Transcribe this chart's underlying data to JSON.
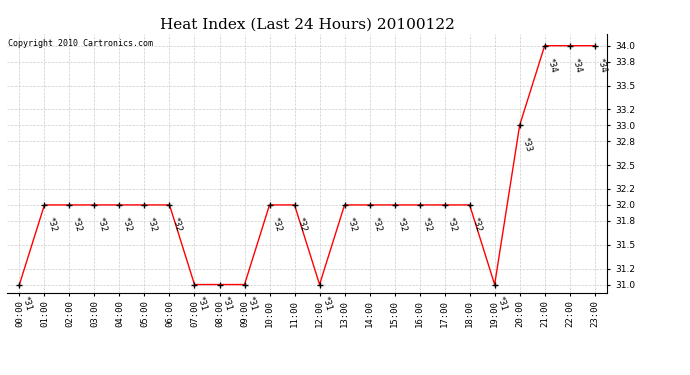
{
  "title": "Heat Index (Last 24 Hours) 20100122",
  "copyright": "Copyright 2010 Cartronics.com",
  "x_labels": [
    "00:00",
    "01:00",
    "02:00",
    "03:00",
    "04:00",
    "05:00",
    "06:00",
    "07:00",
    "08:00",
    "09:00",
    "10:00",
    "11:00",
    "12:00",
    "13:00",
    "14:00",
    "15:00",
    "16:00",
    "17:00",
    "18:00",
    "19:00",
    "20:00",
    "21:00",
    "22:00",
    "23:00"
  ],
  "y_values": [
    31,
    32,
    32,
    32,
    32,
    32,
    32,
    31,
    31,
    31,
    32,
    32,
    31,
    32,
    32,
    32,
    32,
    32,
    32,
    31,
    33,
    34,
    34,
    34
  ],
  "ylim_min": 30.9,
  "ylim_max": 34.15,
  "line_color": "#ff0000",
  "grid_color": "#cccccc",
  "bg_color": "#ffffff",
  "title_fontsize": 11,
  "annot_fontsize": 6,
  "tick_fontsize": 6.5,
  "copyright_fontsize": 6,
  "yticks": [
    31.0,
    31.2,
    31.5,
    31.8,
    32.0,
    32.2,
    32.5,
    32.8,
    33.0,
    33.2,
    33.5,
    33.8,
    34.0
  ]
}
